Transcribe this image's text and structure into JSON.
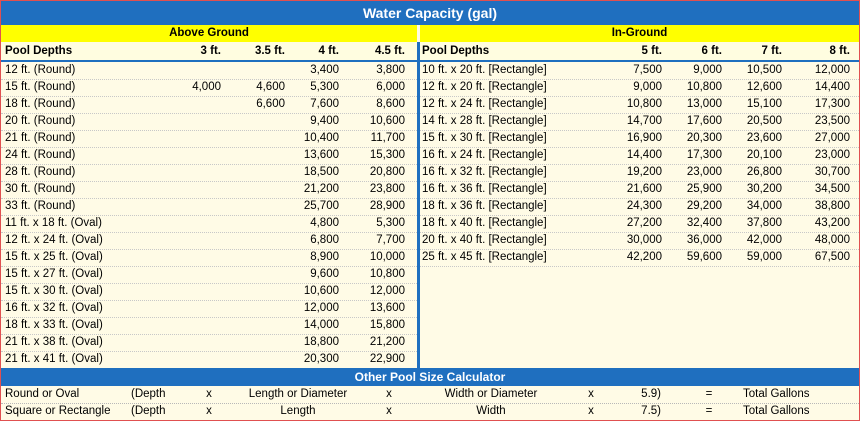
{
  "title": "Water Capacity (gal)",
  "above": {
    "header": "Above Ground",
    "col_label": "Pool Depths",
    "depths": [
      "3 ft.",
      "3.5 ft.",
      "4 ft.",
      "4.5 ft."
    ],
    "rows": [
      {
        "name": "12 ft. (Round)",
        "v": [
          "",
          "",
          "3,400",
          "3,800"
        ]
      },
      {
        "name": "15 ft. (Round)",
        "v": [
          "4,000",
          "4,600",
          "5,300",
          "6,000"
        ]
      },
      {
        "name": "18 ft. (Round)",
        "v": [
          "",
          "6,600",
          "7,600",
          "8,600"
        ]
      },
      {
        "name": "20 ft. (Round)",
        "v": [
          "",
          "",
          "9,400",
          "10,600"
        ]
      },
      {
        "name": "21 ft. (Round)",
        "v": [
          "",
          "",
          "10,400",
          "11,700"
        ]
      },
      {
        "name": "24 ft. (Round)",
        "v": [
          "",
          "",
          "13,600",
          "15,300"
        ]
      },
      {
        "name": "28 ft. (Round)",
        "v": [
          "",
          "",
          "18,500",
          "20,800"
        ]
      },
      {
        "name": "30 ft. (Round)",
        "v": [
          "",
          "",
          "21,200",
          "23,800"
        ]
      },
      {
        "name": "33 ft. (Round)",
        "v": [
          "",
          "",
          "25,700",
          "28,900"
        ]
      },
      {
        "name": "11 ft. x 18 ft. (Oval)",
        "v": [
          "",
          "",
          "4,800",
          "5,300"
        ]
      },
      {
        "name": "12 ft. x 24 ft. (Oval)",
        "v": [
          "",
          "",
          "6,800",
          "7,700"
        ]
      },
      {
        "name": "15 ft. x 25 ft. (Oval)",
        "v": [
          "",
          "",
          "8,900",
          "10,000"
        ]
      },
      {
        "name": "15 ft. x 27 ft. (Oval)",
        "v": [
          "",
          "",
          "9,600",
          "10,800"
        ]
      },
      {
        "name": "15 ft. x 30 ft. (Oval)",
        "v": [
          "",
          "",
          "10,600",
          "12,000"
        ]
      },
      {
        "name": "16 ft. x 32 ft. (Oval)",
        "v": [
          "",
          "",
          "12,000",
          "13,600"
        ]
      },
      {
        "name": "18 ft. x 33 ft. (Oval)",
        "v": [
          "",
          "",
          "14,000",
          "15,800"
        ]
      },
      {
        "name": "21 ft. x 38 ft. (Oval)",
        "v": [
          "",
          "",
          "18,800",
          "21,200"
        ]
      },
      {
        "name": "21 ft. x 41 ft. (Oval)",
        "v": [
          "",
          "",
          "20,300",
          "22,900"
        ]
      }
    ]
  },
  "inground": {
    "header": "In-Ground",
    "col_label": "Pool Depths",
    "depths": [
      "5 ft.",
      "6 ft.",
      "7 ft.",
      "8 ft."
    ],
    "rows": [
      {
        "name": "10 ft. x 20 ft. [Rectangle]",
        "v": [
          "7,500",
          "9,000",
          "10,500",
          "12,000"
        ]
      },
      {
        "name": "12 ft. x 20 ft. [Rectangle]",
        "v": [
          "9,000",
          "10,800",
          "12,600",
          "14,400"
        ]
      },
      {
        "name": "12 ft. x 24 ft. [Rectangle]",
        "v": [
          "10,800",
          "13,000",
          "15,100",
          "17,300"
        ]
      },
      {
        "name": "14 ft. x 28 ft. [Rectangle]",
        "v": [
          "14,700",
          "17,600",
          "20,500",
          "23,500"
        ]
      },
      {
        "name": "15 ft. x 30 ft. [Rectangle]",
        "v": [
          "16,900",
          "20,300",
          "23,600",
          "27,000"
        ]
      },
      {
        "name": "16 ft. x 24 ft. [Rectangle]",
        "v": [
          "14,400",
          "17,300",
          "20,100",
          "23,000"
        ]
      },
      {
        "name": "16 ft. x 32 ft. [Rectangle]",
        "v": [
          "19,200",
          "23,000",
          "26,800",
          "30,700"
        ]
      },
      {
        "name": "16 ft. x 36 ft. [Rectangle]",
        "v": [
          "21,600",
          "25,900",
          "30,200",
          "34,500"
        ]
      },
      {
        "name": "18 ft. x 36 ft. [Rectangle]",
        "v": [
          "24,300",
          "29,200",
          "34,000",
          "38,800"
        ]
      },
      {
        "name": "18 ft. x 40 ft. [Rectangle]",
        "v": [
          "27,200",
          "32,400",
          "37,800",
          "43,200"
        ]
      },
      {
        "name": "20 ft. x 40 ft. [Rectangle]",
        "v": [
          "30,000",
          "36,000",
          "42,000",
          "48,000"
        ]
      },
      {
        "name": "25 ft. x 45 ft. [Rectangle]",
        "v": [
          "42,200",
          "59,600",
          "59,000",
          "67,500"
        ]
      }
    ]
  },
  "calculator": {
    "title": "Other Pool Size Calculator",
    "rows": [
      {
        "shape": "Round or Oval",
        "depth": "(Depth",
        "x1": "x",
        "dim1": "Length or Diameter",
        "x2": "x",
        "dim2": "Width or Diameter",
        "x3": "x",
        "factor": "5.9)",
        "eq": "=",
        "result": "Total Gallons"
      },
      {
        "shape": "Square or Rectangle",
        "depth": "(Depth",
        "x1": "x",
        "dim1": "Length",
        "x2": "x",
        "dim2": "Width",
        "x3": "x",
        "factor": "7.5)",
        "eq": "=",
        "result": "Total Gallons"
      }
    ]
  }
}
